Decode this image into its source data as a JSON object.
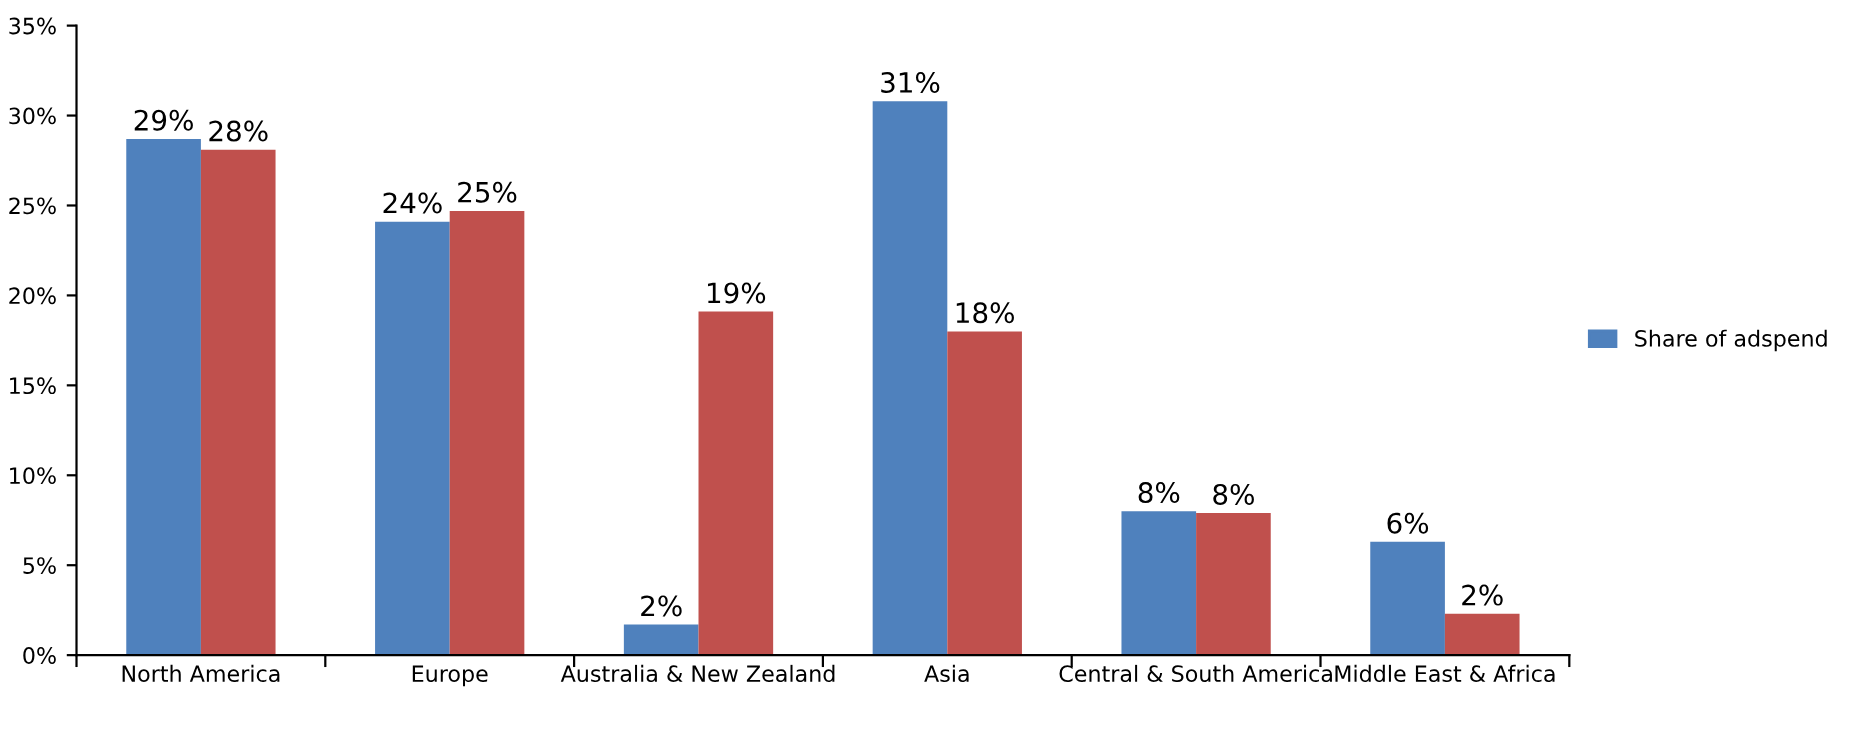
{
  "chart_data": {
    "type": "bar",
    "categories": [
      "North America",
      "Europe",
      "Australia & New Zealand",
      "Asia",
      "Central & South America",
      "Middle East & Africa"
    ],
    "series": [
      {
        "name": "Share of adspend",
        "color": "#4f81bd",
        "values": [
          28.7,
          24.1,
          1.7,
          30.8,
          8.0,
          6.3
        ],
        "value_labels": [
          "29%",
          "24%",
          "2%",
          "31%",
          "8%",
          "6%"
        ]
      },
      {
        "color": "#c0504d",
        "values": [
          28.1,
          24.7,
          19.1,
          18.0,
          7.9,
          2.3
        ],
        "value_labels": [
          "28%",
          "25%",
          "19%",
          "18%",
          "8%",
          "2%"
        ]
      }
    ],
    "ylim": [
      0,
      35
    ],
    "yticks": [
      {
        "value": 0,
        "label": "0%"
      },
      {
        "value": 5,
        "label": "5%"
      },
      {
        "value": 10,
        "label": "10%"
      },
      {
        "value": 15,
        "label": "15%"
      },
      {
        "value": 20,
        "label": "20%"
      },
      {
        "value": 25,
        "label": "25%"
      },
      {
        "value": 30,
        "label": "30%"
      },
      {
        "value": 35,
        "label": "35%"
      }
    ],
    "grid": false,
    "legend": "right"
  }
}
